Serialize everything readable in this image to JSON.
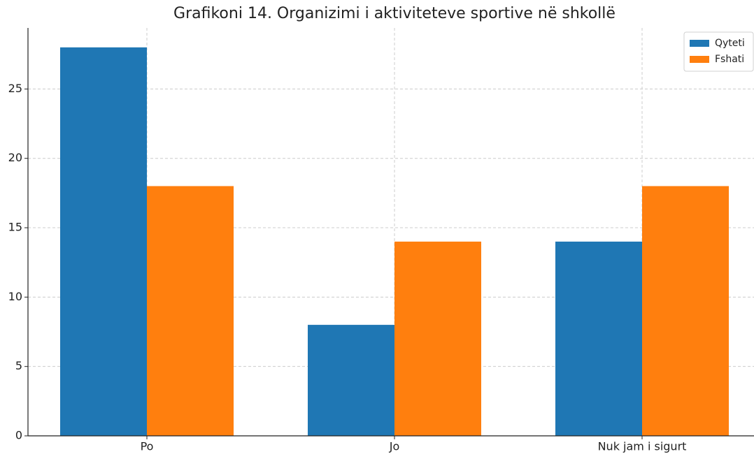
{
  "chart_data": {
    "type": "bar",
    "title": "Grafikoni 14. Organizimi i aktiviteteve sportive në shkollë",
    "categories": [
      "Po",
      "Jo",
      "Nuk jam i sigurt"
    ],
    "series": [
      {
        "name": "Qyteti",
        "color": "#1f77b4",
        "values": [
          28,
          8,
          14
        ]
      },
      {
        "name": "Fshati",
        "color": "#ff7f0e",
        "values": [
          18,
          14,
          18
        ]
      }
    ],
    "ylim": [
      0,
      29.4
    ],
    "yticks": [
      0,
      5,
      10,
      15,
      20,
      25
    ],
    "grid": true,
    "legend": "upper right"
  }
}
